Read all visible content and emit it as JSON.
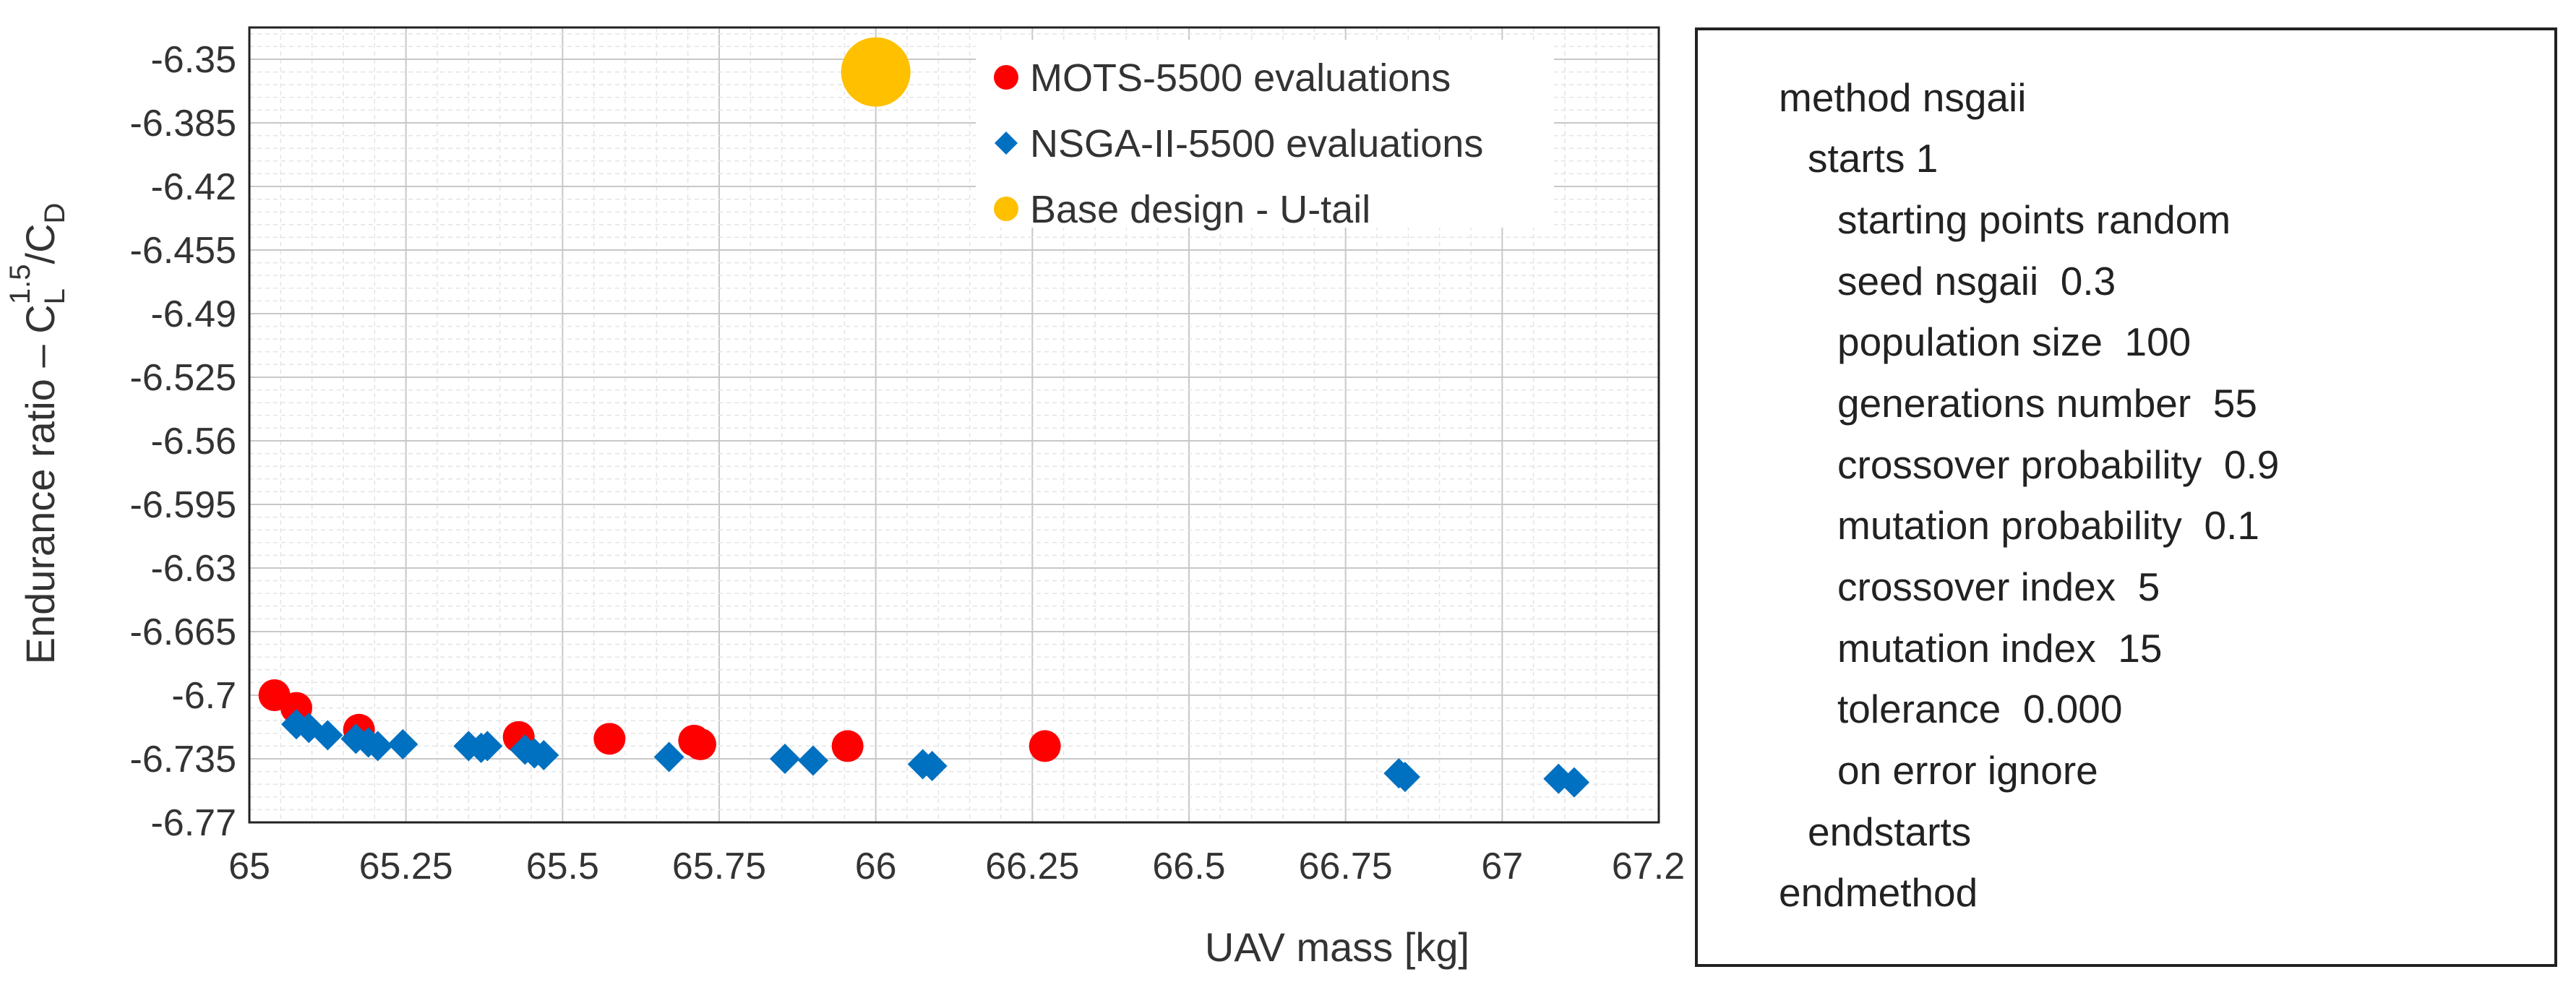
{
  "chart_data": {
    "type": "scatter",
    "xlabel": "UAV mass [kg]",
    "ylabel": "Endurance ratio – C",
    "ylabel_sup": "1.5",
    "ylabel_sub1": "L",
    "ylabel_mid": "/C",
    "ylabel_sub2": "D",
    "xlim": [
      65,
      67.25
    ],
    "ylim": [
      -6.77,
      -6.3325
    ],
    "xticks": [
      "65",
      "65.25",
      "65.5",
      "65.75",
      "66",
      "66.25",
      "66.5",
      "66.75",
      "67",
      "67.25"
    ],
    "yticks": [
      "-6.35",
      "-6.385",
      "-6.42",
      "-6.455",
      "-6.49",
      "-6.525",
      "-6.56",
      "-6.595",
      "-6.63",
      "-6.665",
      "-6.7",
      "-6.735",
      "-6.77"
    ],
    "grid": true,
    "legend_position": "top-right",
    "series": [
      {
        "name": "MOTS-5500 evaluations",
        "color": "#ff0000",
        "marker": "circle",
        "x": [
          65.04,
          65.075,
          65.175,
          65.43,
          65.575,
          65.71,
          65.72,
          65.955,
          66.27
        ],
        "y": [
          -6.7,
          -6.707,
          -6.719,
          -6.723,
          -6.724,
          -6.725,
          -6.727,
          -6.728,
          -6.728
        ]
      },
      {
        "name": "NSGA-II-5500 evaluations",
        "color": "#0070c0",
        "marker": "diamond",
        "x": [
          65.075,
          65.095,
          65.125,
          65.17,
          65.19,
          65.205,
          65.245,
          65.35,
          65.37,
          65.38,
          65.44,
          65.455,
          65.47,
          65.67,
          65.855,
          65.9,
          66.075,
          66.09,
          66.835,
          66.845,
          67.09,
          67.115
        ],
        "y": [
          -6.716,
          -6.718,
          -6.722,
          -6.724,
          -6.726,
          -6.728,
          -6.727,
          -6.728,
          -6.729,
          -6.728,
          -6.73,
          -6.732,
          -6.733,
          -6.734,
          -6.735,
          -6.736,
          -6.738,
          -6.739,
          -6.743,
          -6.745,
          -6.746,
          -6.748
        ]
      },
      {
        "name": "Base design - U-tail",
        "color": "#ffc000",
        "marker": "circle",
        "x": [
          66.0
        ],
        "y": [
          -6.357
        ]
      }
    ]
  },
  "settings_panel": {
    "lines": [
      "method nsgaii",
      "starts 1",
      "starting points random",
      "seed nsgaii  0.3",
      "population size  100",
      "generations number  55",
      "crossover probability  0.9",
      "mutation probability  0.1",
      "crossover index  5",
      "mutation index  15",
      "tolerance  0.000",
      "on error ignore",
      "endstarts",
      "endmethod"
    ]
  }
}
